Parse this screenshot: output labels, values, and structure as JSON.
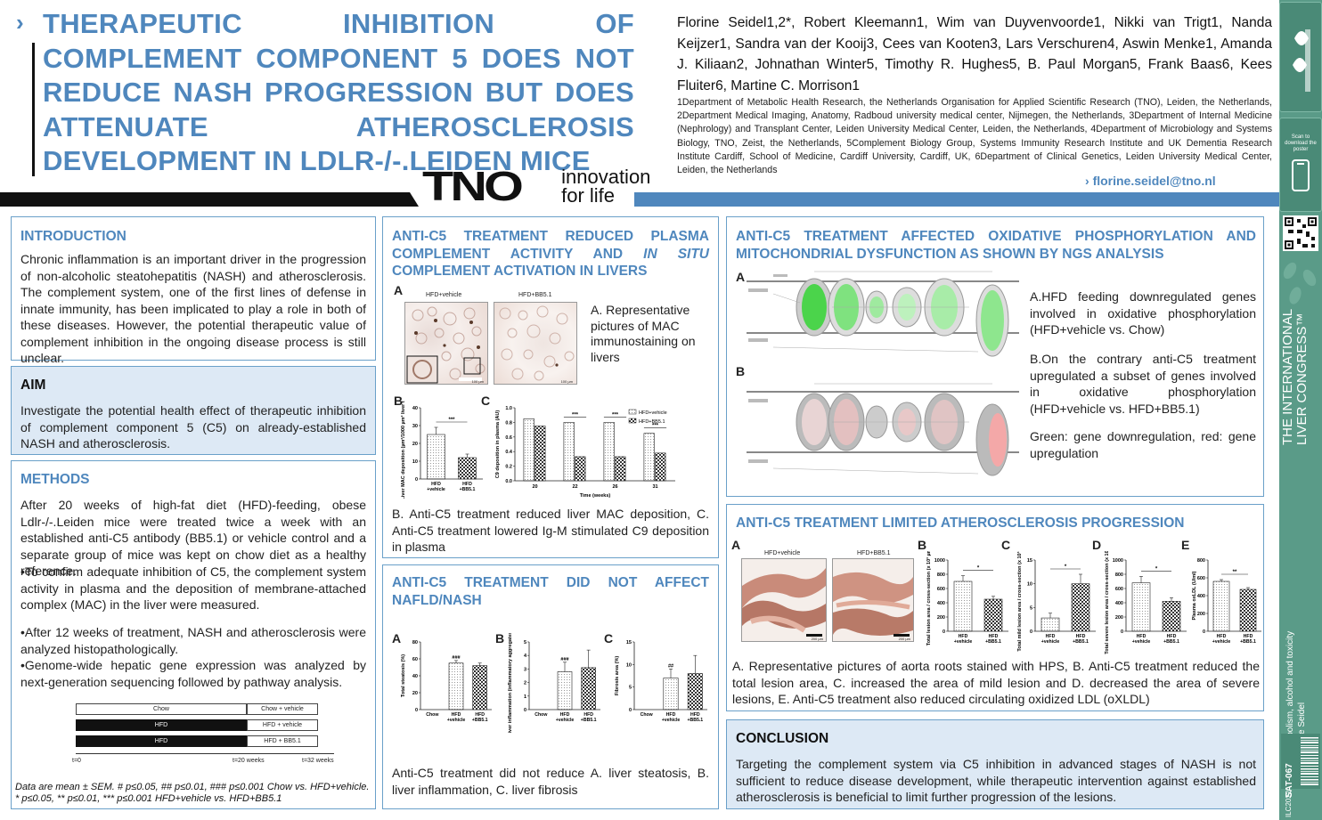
{
  "header": {
    "title": "THERAPEUTIC INHIBITION OF COMPLEMENT COMPONENT 5 DOES NOT REDUCE NASH PROGRESSION BUT DOES ATTENUATE ATHEROSCLEROSIS DEVELOPMENT IN LDLR-/-.LEIDEN MICE",
    "authors": "Florine Seidel1,2*, Robert Kleemann1, Wim van Duyvenvoorde1, Nikki van Trigt1, Nanda Keijzer1, Sandra van der Kooij3, Cees van Kooten3, Lars Verschuren4, Aswin Menke1, Amanda J. Kiliaan2, Johnathan Winter5, Timothy R. Hughes5, B. Paul Morgan5, Frank Baas6, Kees Fluiter6, Martine C. Morrison1",
    "affiliations": "1Department of Metabolic Health Research, the Netherlands Organisation for Applied Scientific Research (TNO), Leiden, the Netherlands, 2Department Medical Imaging, Anatomy, Radboud university medical center, Nijmegen, the Netherlands, 3Department of Internal Medicine (Nephrology) and Transplant Center, Leiden University Medical Center, Leiden, the Netherlands, 4Department of Microbiology and Systems Biology, TNO, Zeist, the Netherlands, 5Complement Biology Group, Systems Immunity Research Institute and UK Dementia Research Institute Cardiff, School of Medicine, Cardiff University, Cardiff, UK, 6Department of Clinical Genetics, Leiden University Medical Center, Leiden, the Netherlands",
    "email": "florine.seidel@tno.nl",
    "logo_mark": "TNO",
    "logo_tag_1": "innovation",
    "logo_tag_2": "for life"
  },
  "intro": {
    "heading": "INTRODUCTION",
    "text": "Chronic inflammation is an important driver in the progression of non-alcoholic steatohepatitis (NASH) and atherosclerosis. The complement system, one of the first lines of defense in innate immunity, has been implicated to play a role in both of these diseases. However, the potential therapeutic value of complement inhibition in the ongoing disease process is still unclear."
  },
  "aim": {
    "heading": "AIM",
    "text": "Investigate the potential health effect of therapeutic inhibition of complement component 5 (C5) on already-established NASH and atherosclerosis."
  },
  "methods": {
    "heading": "METHODS",
    "text": "After 20 weeks of high-fat diet (HFD)-feeding, obese Ldlr-/-.Leiden mice were treated twice a week with an established anti-C5 antibody (BB5.1) or vehicle control and a separate group of mice was kept on chow diet as a healthy reference.",
    "bullets": [
      "•To confirm adequate inhibition of C5, the complement system activity in plasma and the deposition of membrane-attached complex (MAC) in the liver were measured.",
      "•After 12 weeks of treatment, NASH and atherosclerosis were analyzed histopathologically.",
      "•Genome-wide hepatic gene expression was analyzed by next-generation sequencing followed by pathway analysis."
    ],
    "timeline": {
      "rows": [
        {
          "left": "Chow",
          "right": "Chow + vehicle"
        },
        {
          "left": "HFD",
          "right": "HFD + vehicle"
        },
        {
          "left": "HFD",
          "right": "HFD + BB5.1"
        }
      ],
      "t0": "t=0",
      "t20": "t=20 weeks",
      "t32": "t=32 weeks"
    },
    "footnote_1": "Data are mean ± SEM. # p≤0.05, ## p≤0.01, ### p≤0.001 Chow vs. HFD+vehicle.",
    "footnote_2": "* p≤0.05, ** p≤0.01, *** p≤0.001 HFD+vehicle vs. HFD+BB5.1"
  },
  "complement": {
    "heading_1": "ANTI-C5 TREATMENT REDUCED PLASMA COMPLEMENT ACTIVITY AND ",
    "heading_em": "IN SITU",
    "heading_2": " COMPLEMENT ACTIVATION IN LIVERS",
    "label_a": "A",
    "label_b": "B",
    "label_c": "C",
    "img1_label": "HFD+vehicle",
    "img2_label": "HFD+BB5.1",
    "scale": "100 µm",
    "desc_a": "A. Representative pictures of MAC immunostaining on livers",
    "caption": "B. Anti-C5 treatment reduced liver MAC deposition, C. Anti-C5 treatment lowered Ig-M stimulated C9 deposition in plasma"
  },
  "nafld": {
    "heading": "ANTI-C5 TREATMENT DID NOT AFFECT NAFLD/NASH",
    "label_a": "A",
    "label_b": "B",
    "label_c": "C",
    "caption": "Anti-C5 treatment did not reduce A. liver steatosis, B. liver inflammation, C. liver fibrosis"
  },
  "ngs": {
    "heading": "ANTI-C5 TREATMENT AFFECTED OXIDATIVE PHOSPHORYLATION AND MITOCHONDRIAL DYSFUNCTION AS SHOWN BY NGS ANALYSIS",
    "label_a": "A",
    "label_b": "B",
    "item_a": "A.HFD feeding downregulated genes involved in oxidative phosphorylation (HFD+vehicle vs. Chow)",
    "item_b": "B.On the contrary anti-C5 treatment upregulated a subset of genes involved in oxidative phosphorylation (HFD+vehicle vs. HFD+BB5.1)",
    "legend": "Green: gene downregulation, red: gene upregulation"
  },
  "athero": {
    "heading": "ANTI-C5 TREATMENT LIMITED ATHEROSCLEROSIS PROGRESSION",
    "label_a": "A",
    "label_b": "B",
    "label_c": "C",
    "label_d": "D",
    "label_e": "E",
    "img1_label": "HFD+vehicle",
    "img2_label": "HFD+BB5.1",
    "scale": "200 µm",
    "caption": "A. Representative pictures of aorta roots stained with HPS, B. Anti-C5 treatment reduced the total lesion area, C. increased the area of mild lesion and D. decreased the area of severe lesions, E. Anti-C5 treatment also reduced circulating oxidized LDL (oXLDL)"
  },
  "conclusion": {
    "heading": "CONCLUSION",
    "text": "Targeting the complement system via C5 inhibition in advanced stages of NASH is not sufficient to reduce disease development, while therapeutic intervention against established atherosclerosis is beneficial to limit further progression of the lesions."
  },
  "sidebar": {
    "scan_text": "Scan to download the poster",
    "congress_1": "THE INTERNATIONAL",
    "congress_2": "LIVER CONGRESS™",
    "topic": "Metabolism, alcohol and toxicity",
    "author": "Florine Seidel",
    "code": "SAT-067",
    "year": "ILC2022"
  },
  "chart_data": [
    {
      "type": "bar",
      "id": "mac-deposition",
      "categories": [
        "HFD +vehicle",
        "HFD +BB5.1"
      ],
      "values": [
        25,
        12
      ],
      "errors": [
        4,
        2
      ],
      "ylabel": "Liver MAC deposition (µm²/1000 µm² liver tissue)",
      "ylim": [
        0,
        40
      ],
      "yticks": [
        "0",
        "10",
        "20",
        "30",
        "40"
      ],
      "significance": [
        "***"
      ]
    },
    {
      "type": "bar",
      "id": "c9-deposition",
      "categories": [
        "20",
        "22",
        "26",
        "31"
      ],
      "series": [
        {
          "name": "HFD+vehicle",
          "values": [
            0.85,
            0.8,
            0.8,
            0.65
          ]
        },
        {
          "name": "HFD+BB5.1",
          "values": [
            0.75,
            0.33,
            0.33,
            0.38
          ]
        }
      ],
      "xlabel": "Time (weeks)",
      "ylabel": "C9 deposition in plasma (AU)",
      "ylim": [
        0,
        1.0
      ],
      "yticks": [
        "0.0",
        "0.2",
        "0.4",
        "0.6",
        "0.8",
        "1.0"
      ],
      "significance": [
        "",
        "***",
        "***",
        "***"
      ]
    },
    {
      "type": "bar",
      "id": "steatosis",
      "categories": [
        "Chow",
        "HFD +vehicle",
        "HFD +BB5.1"
      ],
      "values": [
        0,
        55,
        52
      ],
      "errors": [
        0,
        3,
        3
      ],
      "ylabel": "Total steatosis (%)",
      "ylim": [
        0,
        80
      ],
      "yticks": [
        "0",
        "20",
        "40",
        "60",
        "80"
      ],
      "significance": [
        "###"
      ]
    },
    {
      "type": "bar",
      "id": "inflammation",
      "categories": [
        "Chow",
        "HFD +vehicle",
        "HFD +BB5.1"
      ],
      "values": [
        0,
        2.8,
        3.1
      ],
      "errors": [
        0,
        0.7,
        1.3
      ],
      "ylabel": "Liver inflammation (inflammatory aggregates / mm²)",
      "ylim": [
        0,
        5
      ],
      "yticks": [
        "0",
        "1",
        "2",
        "3",
        "4",
        "5"
      ],
      "significance": [
        "###"
      ]
    },
    {
      "type": "bar",
      "id": "fibrosis",
      "categories": [
        "Chow",
        "HFD +vehicle",
        "HFD +BB5.1"
      ],
      "values": [
        0,
        7,
        8
      ],
      "errors": [
        0,
        2,
        4
      ],
      "ylabel": "Fibrosis area (%)",
      "ylim": [
        0,
        15
      ],
      "yticks": [
        "0",
        "5",
        "10",
        "15"
      ],
      "significance": [
        "##"
      ]
    },
    {
      "type": "bar",
      "id": "total-lesion",
      "categories": [
        "HFD +vehicle",
        "HFD +BB5.1"
      ],
      "values": [
        700,
        450
      ],
      "errors": [
        80,
        40
      ],
      "ylabel": "Total lesion area / cross-section (x 10³ µm²)",
      "ylim": [
        0,
        1000
      ],
      "yticks": [
        "0",
        "200",
        "400",
        "600",
        "800",
        "1000"
      ],
      "significance": [
        "*"
      ]
    },
    {
      "type": "bar",
      "id": "mild-lesion",
      "categories": [
        "HFD +vehicle",
        "HFD +BB5.1"
      ],
      "values": [
        2.8,
        10
      ],
      "errors": [
        1,
        2
      ],
      "ylabel": "Total mild lesion area / cross-section (x 10³ µm²)",
      "ylim": [
        0,
        15
      ],
      "yticks": [
        "0",
        "5",
        "10",
        "15"
      ],
      "significance": [
        "*"
      ]
    },
    {
      "type": "bar",
      "id": "severe-lesion",
      "categories": [
        "HFD +vehicle",
        "HFD +BB5.1"
      ],
      "values": [
        680,
        420
      ],
      "errors": [
        90,
        50
      ],
      "ylabel": "Total severe lesion area / cross-section (x 10³ µm²)",
      "ylim": [
        0,
        1000
      ],
      "yticks": [
        "0",
        "200",
        "400",
        "600",
        "800",
        "1000"
      ],
      "significance": [
        "*"
      ]
    },
    {
      "type": "bar",
      "id": "oxldl",
      "categories": [
        "HFD +vehicle",
        "HFD +BB5.1"
      ],
      "values": [
        560,
        470
      ],
      "errors": [
        20,
        20
      ],
      "ylabel": "Plasma oxLDL (U/ml)",
      "ylim": [
        0,
        800
      ],
      "yticks": [
        "0",
        "200",
        "400",
        "600",
        "800"
      ],
      "significance": [
        "**"
      ]
    }
  ]
}
